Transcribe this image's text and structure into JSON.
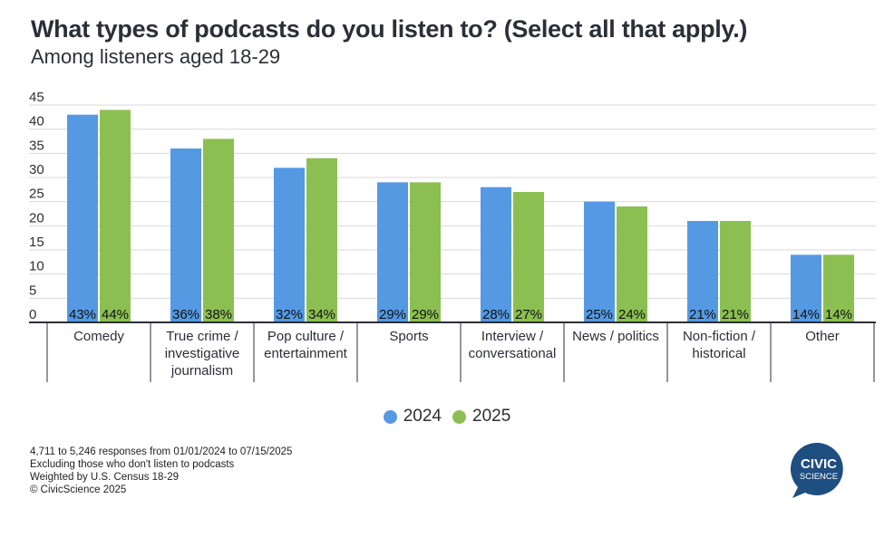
{
  "title": "What types of podcasts do you listen to? (Select all that apply.)",
  "subtitle": "Among listeners aged 18-29",
  "chart_data": {
    "type": "bar",
    "title": "What types of podcasts do you listen to? (Select all that apply.)",
    "subtitle": "Among listeners aged 18-29",
    "xlabel": "",
    "ylabel": "",
    "ylim": [
      0,
      45
    ],
    "yticks": [
      0,
      5,
      10,
      15,
      20,
      25,
      30,
      35,
      40,
      45
    ],
    "grid": true,
    "legend_position": "bottom-center",
    "categories": [
      [
        "Comedy"
      ],
      [
        "True crime /",
        "investigative",
        "journalism"
      ],
      [
        "Pop culture /",
        "entertainment"
      ],
      [
        "Sports"
      ],
      [
        "Interview /",
        "conversational"
      ],
      [
        "News / politics"
      ],
      [
        "Non-fiction /",
        "historical"
      ],
      [
        "Other"
      ]
    ],
    "series": [
      {
        "name": "2024",
        "color": "#5599e3",
        "values": [
          43,
          36,
          32,
          29,
          28,
          25,
          21,
          14
        ],
        "labels": [
          "43%",
          "36%",
          "32%",
          "29%",
          "28%",
          "25%",
          "21%",
          "14%"
        ]
      },
      {
        "name": "2025",
        "color": "#8cbf52",
        "values": [
          44,
          38,
          34,
          29,
          27,
          24,
          21,
          14
        ],
        "labels": [
          "44%",
          "38%",
          "34%",
          "29%",
          "27%",
          "24%",
          "21%",
          "14%"
        ]
      }
    ]
  },
  "legend": [
    {
      "label": "2024",
      "color": "#5599e3"
    },
    {
      "label": "2025",
      "color": "#8cbf52"
    }
  ],
  "footer": {
    "lines": [
      "4,711 to 5,246 responses from 01/01/2024 to 07/15/2025",
      "Excluding those who don't listen to podcasts",
      "Weighted by U.S. Census 18-29",
      "© CivicScience 2025"
    ]
  },
  "logo": {
    "line1": "CIVIC",
    "line2": "SCIENCE",
    "color": "#1f4e80"
  }
}
